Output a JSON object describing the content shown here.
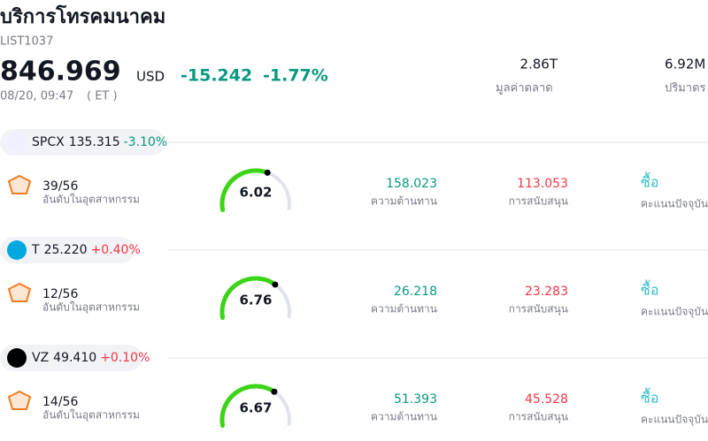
{
  "header": {
    "title": "บริการโทรคมนาคม",
    "code": "LIST1037",
    "price": "846.969",
    "currency": "USD",
    "change": "-15.242",
    "change_pct": "-1.77%",
    "time": "08/20, 09:47",
    "timezone": "( ET )"
  },
  "stats": [
    {
      "value": "2.86T",
      "label": "มูลค่าตลาด"
    },
    {
      "value": "6.92M",
      "label": "ปริมาตร"
    }
  ],
  "score_scale": [
    0,
    10
  ],
  "rows": [
    {
      "ticker": "SPCX",
      "price": "135.315",
      "change": "-3.10%",
      "rank": "39/56",
      "rank_label": "อันดับในอุตสาหกรรม",
      "score": 6.02,
      "resistance": "158.023",
      "resistance_label": "ความต้านทาน",
      "support": "113.053",
      "support_label": "การสนับสนุน",
      "signal": "ซื้อ",
      "signal_label": "คะแนนปัจจุบัน"
    },
    {
      "ticker": "T",
      "price": "25.220",
      "change": "+0.40%",
      "rank": "12/56",
      "rank_label": "อันดับในอุตสาหกรรม",
      "score": 6.76,
      "resistance": "26.218",
      "resistance_label": "ความต้านทาน",
      "support": "23.283",
      "support_label": "การสนับสนุน",
      "signal": "ซื้อ",
      "signal_label": "คะแนนปัจจุบัน"
    },
    {
      "ticker": "VZ",
      "price": "49.410",
      "change": "+0.10%",
      "rank": "14/56",
      "rank_label": "อันดับในอุตสาหกรรม",
      "score": 6.67,
      "resistance": "51.393",
      "resistance_label": "ความต้านทาน",
      "support": "45.528",
      "support_label": "การสนับสนุน",
      "signal": "ซื้อ",
      "signal_label": "คะแนนปัจจุบัน"
    }
  ]
}
